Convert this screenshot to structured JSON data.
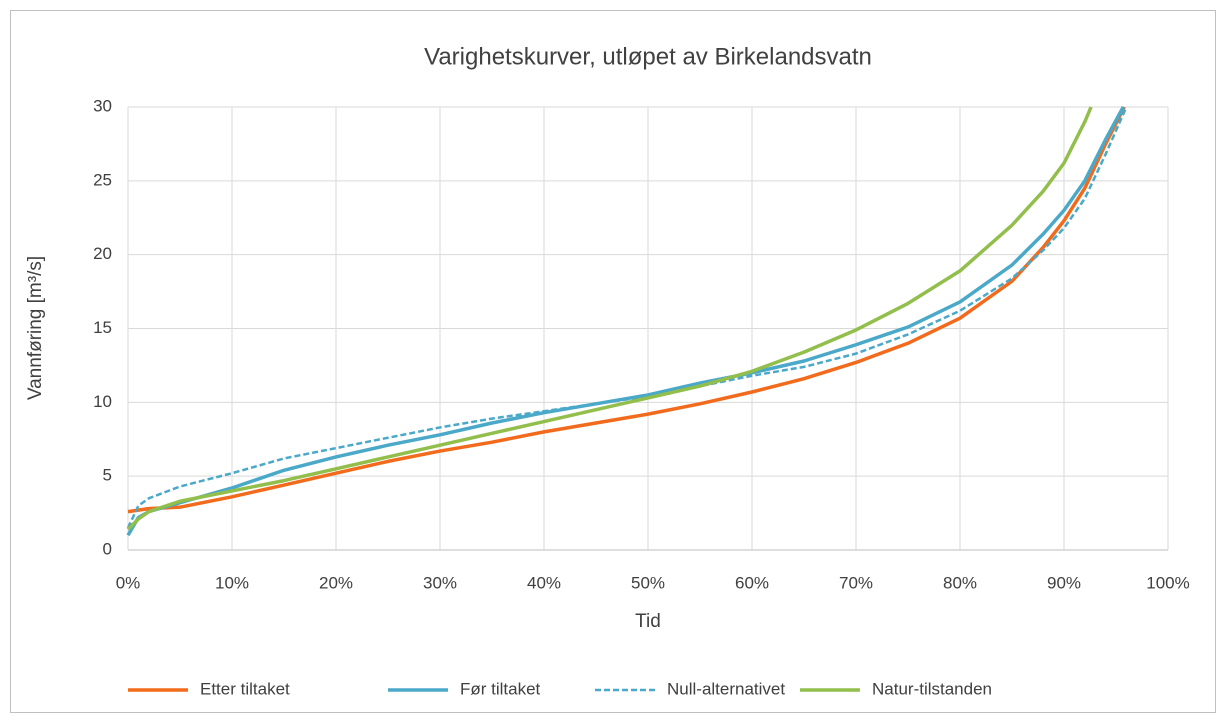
{
  "chart_data": {
    "type": "line",
    "title": "Varighetskurver, utløpet av Birkelandsvatn",
    "x_label": "Tid",
    "y_label": "Vannføring [m³/s]",
    "xlim": [
      0,
      100
    ],
    "xticks": [
      {
        "value": 0,
        "label": "0%"
      },
      {
        "value": 10,
        "label": "10%"
      },
      {
        "value": 20,
        "label": "20%"
      },
      {
        "value": 30,
        "label": "30%"
      },
      {
        "value": 40,
        "label": "40%"
      },
      {
        "value": 50,
        "label": "50%"
      },
      {
        "value": 60,
        "label": "60%"
      },
      {
        "value": 70,
        "label": "70%"
      },
      {
        "value": 80,
        "label": "80%"
      },
      {
        "value": 90,
        "label": "90%"
      },
      {
        "value": 100,
        "label": "100%"
      }
    ],
    "ylim": [
      0,
      30
    ],
    "yticks": [
      0,
      5,
      10,
      15,
      20,
      25,
      30
    ],
    "grid": true,
    "legend": "bottom",
    "series": [
      {
        "name": "Etter tiltaket",
        "color": "#f26b1d",
        "dashed": false,
        "x": [
          0,
          2,
          5,
          10,
          15,
          20,
          25,
          30,
          35,
          40,
          45,
          50,
          55,
          60,
          65,
          70,
          75,
          80,
          85,
          88,
          90,
          92,
          94,
          95.8
        ],
        "values": [
          2.6,
          2.8,
          2.9,
          3.6,
          4.4,
          5.2,
          6.0,
          6.7,
          7.3,
          8.0,
          8.6,
          9.2,
          9.9,
          10.7,
          11.6,
          12.7,
          14.0,
          15.7,
          18.2,
          20.5,
          22.3,
          24.5,
          27.5,
          30
        ]
      },
      {
        "name": "Før tiltaket",
        "color": "#4aa8c8",
        "dashed": false,
        "x": [
          0,
          1,
          2,
          5,
          10,
          15,
          20,
          25,
          30,
          35,
          40,
          45,
          50,
          55,
          60,
          65,
          70,
          75,
          80,
          85,
          88,
          90,
          92,
          94,
          95.7
        ],
        "values": [
          1.0,
          2.2,
          2.6,
          3.2,
          4.2,
          5.4,
          6.3,
          7.1,
          7.8,
          8.6,
          9.3,
          9.9,
          10.5,
          11.3,
          12.0,
          12.8,
          13.9,
          15.1,
          16.8,
          19.3,
          21.4,
          23.0,
          25.0,
          27.8,
          30
        ]
      },
      {
        "name": "Null-alternativet",
        "color": "#4aa8c8",
        "dashed": true,
        "x": [
          0,
          1,
          2,
          5,
          10,
          15,
          20,
          25,
          30,
          35,
          40,
          45,
          50,
          55,
          60,
          65,
          70,
          75,
          80,
          85,
          88,
          90,
          92,
          94,
          96
        ],
        "values": [
          1.5,
          3.0,
          3.5,
          4.3,
          5.2,
          6.2,
          6.9,
          7.6,
          8.3,
          8.9,
          9.4,
          9.9,
          10.4,
          11.1,
          11.8,
          12.4,
          13.3,
          14.6,
          16.2,
          18.4,
          20.3,
          21.8,
          23.8,
          26.8,
          30
        ]
      },
      {
        "name": "Natur-tilstanden",
        "color": "#92be4b",
        "dashed": false,
        "x": [
          0,
          1,
          2,
          5,
          10,
          15,
          20,
          25,
          30,
          35,
          40,
          45,
          50,
          55,
          60,
          65,
          70,
          75,
          80,
          85,
          88,
          90,
          92,
          92.6
        ],
        "values": [
          1.4,
          2.1,
          2.6,
          3.3,
          4.0,
          4.7,
          5.5,
          6.3,
          7.1,
          7.9,
          8.7,
          9.5,
          10.3,
          11.1,
          12.1,
          13.4,
          14.9,
          16.7,
          18.9,
          22.0,
          24.3,
          26.2,
          29.0,
          30
        ]
      }
    ]
  }
}
